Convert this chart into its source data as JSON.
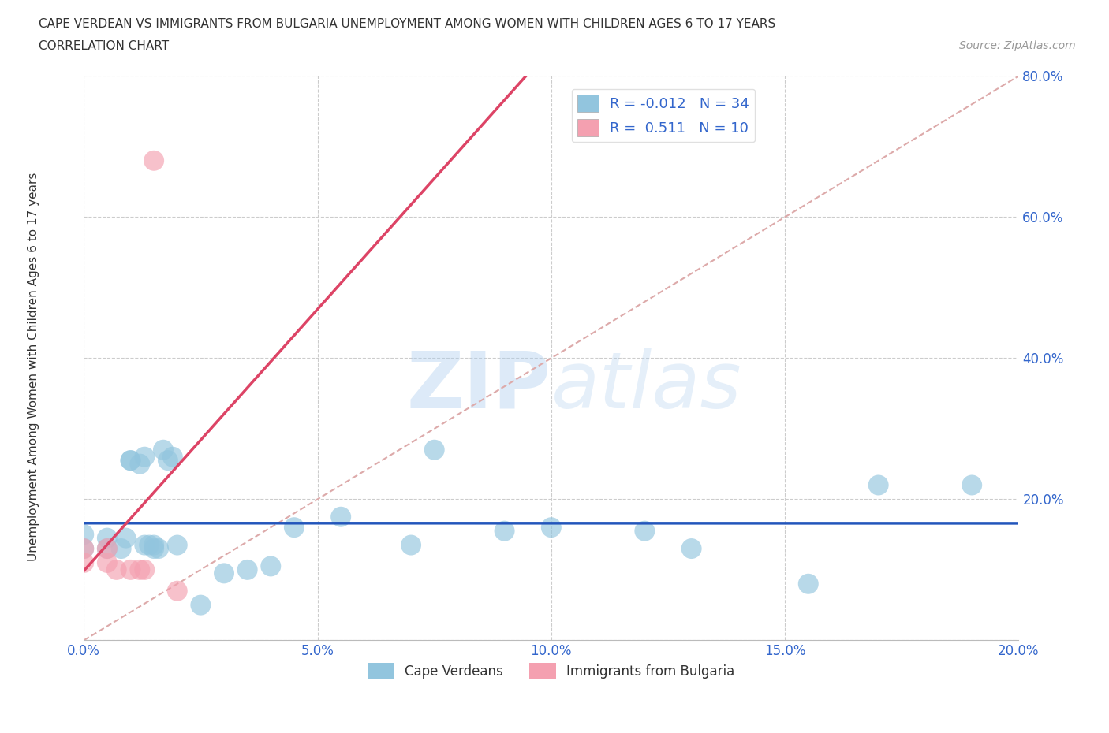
{
  "title_line1": "CAPE VERDEAN VS IMMIGRANTS FROM BULGARIA UNEMPLOYMENT AMONG WOMEN WITH CHILDREN AGES 6 TO 17 YEARS",
  "title_line2": "CORRELATION CHART",
  "source_text": "Source: ZipAtlas.com",
  "ylabel": "Unemployment Among Women with Children Ages 6 to 17 years",
  "xlim": [
    0.0,
    0.2
  ],
  "ylim": [
    0.0,
    0.8
  ],
  "xticks": [
    0.0,
    0.05,
    0.1,
    0.15,
    0.2
  ],
  "yticks": [
    0.0,
    0.2,
    0.4,
    0.6,
    0.8
  ],
  "xticklabels": [
    "0.0%",
    "5.0%",
    "10.0%",
    "15.0%",
    "20.0%"
  ],
  "yticklabels": [
    "",
    "20.0%",
    "40.0%",
    "60.0%",
    "80.0%"
  ],
  "blue_color": "#92C5DE",
  "pink_color": "#F4A0B0",
  "blue_line_color": "#2255BB",
  "pink_line_color": "#DD4466",
  "diagonal_color": "#DDAAAA",
  "watermark_zip": "ZIP",
  "watermark_atlas": "atlas",
  "watermark_color_zip": "#AACCEE",
  "watermark_color_atlas": "#AACCEE",
  "R_blue": -0.012,
  "N_blue": 34,
  "R_pink": 0.511,
  "N_pink": 10,
  "legend_label_blue": "Cape Verdeans",
  "legend_label_pink": "Immigrants from Bulgaria",
  "blue_scatter_x": [
    0.0,
    0.0,
    0.005,
    0.005,
    0.008,
    0.009,
    0.01,
    0.01,
    0.012,
    0.013,
    0.013,
    0.014,
    0.015,
    0.015,
    0.016,
    0.017,
    0.018,
    0.019,
    0.02,
    0.025,
    0.03,
    0.035,
    0.04,
    0.045,
    0.055,
    0.07,
    0.075,
    0.09,
    0.1,
    0.12,
    0.13,
    0.155,
    0.17,
    0.19
  ],
  "blue_scatter_y": [
    0.13,
    0.15,
    0.13,
    0.145,
    0.13,
    0.145,
    0.255,
    0.255,
    0.25,
    0.26,
    0.135,
    0.135,
    0.13,
    0.135,
    0.13,
    0.27,
    0.255,
    0.26,
    0.135,
    0.05,
    0.095,
    0.1,
    0.105,
    0.16,
    0.175,
    0.135,
    0.27,
    0.155,
    0.16,
    0.155,
    0.13,
    0.08,
    0.22,
    0.22
  ],
  "pink_scatter_x": [
    0.0,
    0.0,
    0.005,
    0.005,
    0.007,
    0.01,
    0.012,
    0.013,
    0.015,
    0.02
  ],
  "pink_scatter_y": [
    0.11,
    0.13,
    0.11,
    0.13,
    0.1,
    0.1,
    0.1,
    0.1,
    0.68,
    0.07
  ]
}
